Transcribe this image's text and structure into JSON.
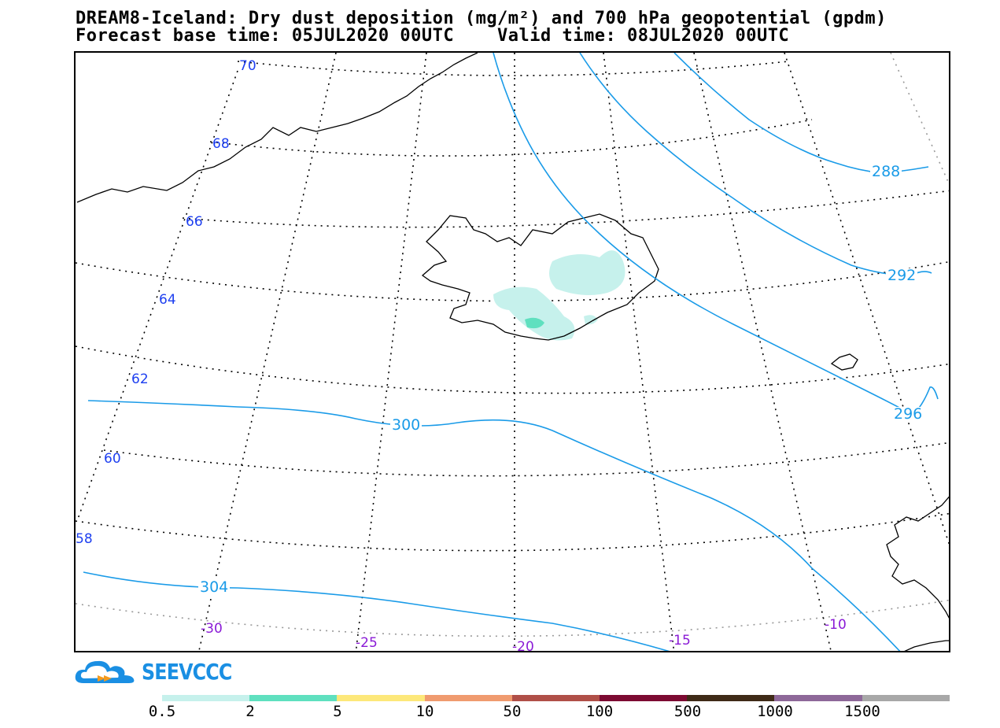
{
  "header": {
    "title": "DREAM8-Iceland: Dry dust deposition (mg/m²) and 700 hPa geopotential (gpdm)",
    "subtitle": "Forecast base time: 05JUL2020 00UTC    Valid time: 08JUL2020 00UTC"
  },
  "map": {
    "latitude_labels": [
      "70",
      "68",
      "66",
      "64",
      "62",
      "60",
      "58"
    ],
    "longitude_labels": [
      "-30",
      "-25",
      "-20",
      "-15",
      "-10"
    ],
    "geopotential_contours": [
      {
        "value": "288"
      },
      {
        "value": "292"
      },
      {
        "value": "296"
      },
      {
        "value": "300"
      },
      {
        "value": "304"
      }
    ],
    "contour_color": "#1a9be8",
    "latitude_label_color": "#1d3ff0",
    "longitude_label_color": "#8a1ad6",
    "grid_style": "dotted"
  },
  "logo": {
    "text": "SEEVCCC",
    "icon": "cloud-icon",
    "color": "#1a8fe3"
  },
  "legend": {
    "labels": [
      "0.5",
      "2",
      "5",
      "10",
      "50",
      "100",
      "500",
      "1000",
      "1500"
    ],
    "colors": [
      "#c6f1ec",
      "#5fe0bf",
      "#fde87a",
      "#f09b6f",
      "#b04f48",
      "#7c0a32",
      "#3f2a17",
      "#8e6899",
      "#a8a8a8"
    ]
  }
}
